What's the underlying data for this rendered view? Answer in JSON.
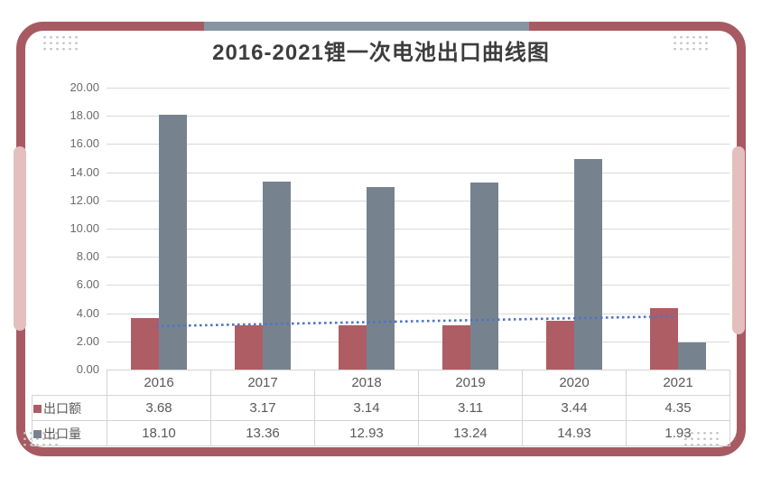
{
  "title": "2016-2021锂一次电池出口曲线图",
  "chart_data": {
    "type": "bar",
    "title": "2016-2021锂一次电池出口曲线图",
    "categories": [
      "2016",
      "2017",
      "2018",
      "2019",
      "2020",
      "2021"
    ],
    "series": [
      {
        "name": "出口额",
        "color": "#ae5d64",
        "values": [
          3.68,
          3.17,
          3.14,
          3.11,
          3.44,
          4.35
        ]
      },
      {
        "name": "出口量",
        "color": "#76838f",
        "values": [
          18.1,
          13.36,
          12.93,
          13.24,
          14.93,
          1.93
        ]
      }
    ],
    "trendline": {
      "for_series": "出口额",
      "style": "dotted",
      "color": "#4f74c5",
      "start_value": 3.08,
      "end_value": 3.78
    },
    "ylim": [
      0,
      20
    ],
    "ytick_step": 2,
    "y_tick_labels": [
      "20.00",
      "18.00",
      "16.00",
      "14.00",
      "12.00",
      "10.00",
      "8.00",
      "6.00",
      "4.00",
      "2.00",
      "0.00"
    ],
    "grid": true,
    "legend_position": "data-table-left",
    "data_table_shown": true
  },
  "frame": {
    "border_color": "#a85a62",
    "accent_pink": "#e5bebe",
    "accent_gray": "#8795a3",
    "dot_color": "#c6c6c6"
  }
}
